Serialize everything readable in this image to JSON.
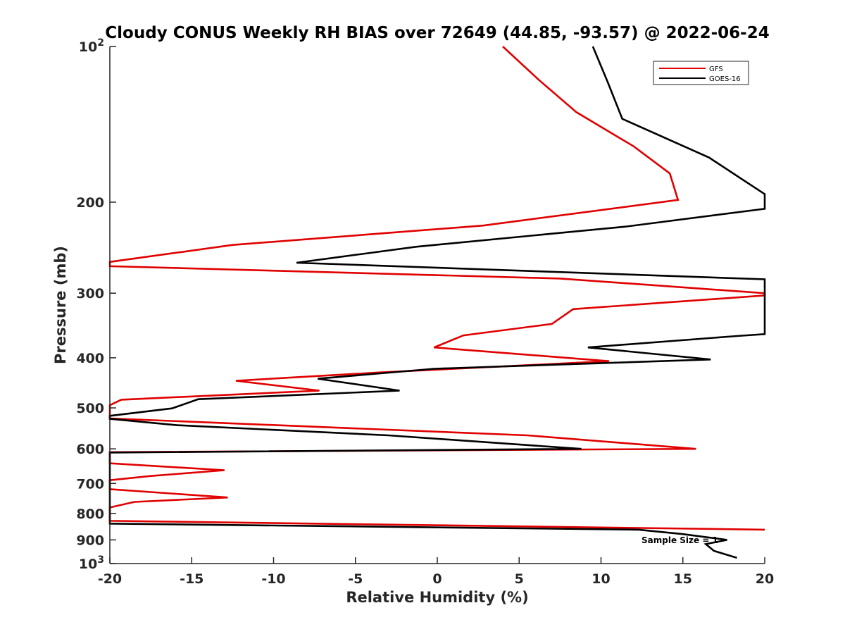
{
  "chart_data": {
    "type": "line",
    "title": "Cloudy CONUS Weekly RH BIAS over 72649 (44.85, -93.57) @ 2022-06-24",
    "xlabel": "Relative Humidity (%)",
    "ylabel": "Pressure (mb)",
    "xlim": [
      -20,
      20
    ],
    "ylim": [
      100,
      1000
    ],
    "y_scale": "log",
    "y_reversed": true,
    "x_ticks": [
      "-20",
      "-15",
      "-10",
      "-5",
      "0",
      "5",
      "10",
      "15",
      "20"
    ],
    "y_ticks": [
      {
        "value": 100,
        "base": "10",
        "exp": "2"
      },
      {
        "value": 200,
        "label": "200"
      },
      {
        "value": 300,
        "label": "300"
      },
      {
        "value": 400,
        "label": "400"
      },
      {
        "value": 500,
        "label": "500"
      },
      {
        "value": 600,
        "label": "600"
      },
      {
        "value": 700,
        "label": "700"
      },
      {
        "value": 800,
        "label": "800"
      },
      {
        "value": 900,
        "label": "900"
      },
      {
        "value": 1000,
        "base": "10",
        "exp": "3"
      }
    ],
    "grid": false,
    "legend_position": "top-right",
    "series": [
      {
        "name": "GFS",
        "color": "#e00000",
        "points": [
          [
            4,
            100
          ],
          [
            6.2,
            116
          ],
          [
            8.5,
            134
          ],
          [
            12,
            156
          ],
          [
            14.2,
            176
          ],
          [
            14.7,
            198
          ],
          [
            2.8,
            222
          ],
          [
            -12.5,
            242
          ],
          [
            -20,
            261
          ],
          [
            -20,
            266
          ],
          [
            7.5,
            281
          ],
          [
            20,
            300
          ],
          [
            20,
            303
          ],
          [
            8.3,
            322
          ],
          [
            7,
            344
          ],
          [
            1.6,
            362
          ],
          [
            -0.2,
            382
          ],
          [
            10.5,
            406
          ],
          [
            -3.5,
            427
          ],
          [
            -12.3,
            443
          ],
          [
            -7.2,
            463
          ],
          [
            -19.3,
            482
          ],
          [
            -20,
            494
          ],
          [
            -20,
            524
          ],
          [
            5.5,
            565
          ],
          [
            15.8,
            600
          ],
          [
            -20,
            609
          ],
          [
            -20,
            640
          ],
          [
            -13,
            660
          ],
          [
            -17.5,
            677
          ],
          [
            -20,
            690
          ],
          [
            -20,
            718
          ],
          [
            -12.8,
            745
          ],
          [
            -18.5,
            760
          ],
          [
            -20,
            779
          ],
          [
            -20,
            827
          ],
          [
            20,
            860
          ]
        ]
      },
      {
        "name": "GOES-16",
        "color": "#000000",
        "points": [
          [
            9.5,
            100
          ],
          [
            10.4,
            117
          ],
          [
            11.3,
            138
          ],
          [
            16.6,
            164
          ],
          [
            20,
            193
          ],
          [
            20,
            206
          ],
          [
            11.5,
            223
          ],
          [
            -1.3,
            244
          ],
          [
            -8.6,
            262
          ],
          [
            20,
            282
          ],
          [
            20,
            360
          ],
          [
            18.3,
            363
          ],
          [
            9.2,
            382
          ],
          [
            16.7,
            403
          ],
          [
            -0.2,
            420
          ],
          [
            -7.3,
            439
          ],
          [
            -2.3,
            463
          ],
          [
            -14.6,
            481
          ],
          [
            -16.2,
            501
          ],
          [
            -20,
            518
          ],
          [
            -20,
            525
          ],
          [
            -15.9,
            540
          ],
          [
            -3,
            565
          ],
          [
            8.8,
            600
          ],
          [
            -20,
            610
          ],
          [
            -20,
            837
          ],
          [
            12.3,
            860
          ],
          [
            15,
            877
          ],
          [
            17.7,
            900
          ],
          [
            16.4,
            917
          ],
          [
            16.9,
            945
          ],
          [
            18.3,
            975
          ]
        ]
      }
    ],
    "annotations": [
      {
        "text": "Sample Size = 1",
        "x": 16.5,
        "y": 900
      }
    ]
  },
  "colors": {
    "gfs": "#e00000",
    "goes16": "#000000",
    "axis": "#262626",
    "background": "#ffffff"
  }
}
